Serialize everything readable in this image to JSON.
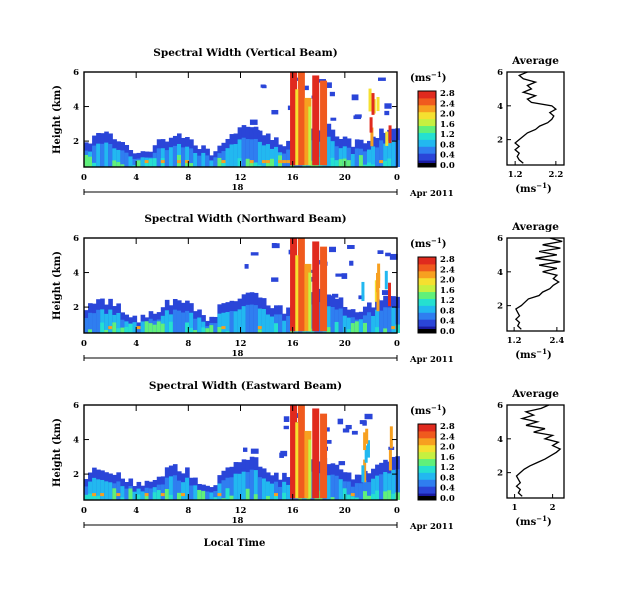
{
  "chart_data": [
    {
      "type": "heatmap",
      "title": "Spectral Width (Vertical Beam)",
      "ylabel": "Height (km)",
      "y_ticks": [
        "2",
        "4",
        "6"
      ],
      "x_ticks": [
        "0",
        "4",
        "8",
        "12",
        "16",
        "20",
        "0"
      ],
      "date_day": "18",
      "date_month": "Apr 2011",
      "xlim": [
        0,
        24
      ],
      "ylim": [
        0.5,
        6
      ],
      "colorbar": {
        "unit": "(ms",
        "unit_exp": "−1",
        "unit_close": ")",
        "tick_labels": [
          "2.8",
          "2.4",
          "2.0",
          "1.6",
          "1.2",
          "0.8",
          "0.4",
          "0.0"
        ]
      },
      "profile": {
        "title": "Average",
        "xlabel": "(ms",
        "xlabel_exp": "−1",
        "xlabel_close": ")",
        "x_ticks": [
          "1.2",
          "2.2"
        ],
        "y_ticks": [
          "2",
          "4",
          "6"
        ],
        "xlim": [
          1.0,
          2.4
        ],
        "ylim": [
          0.5,
          6
        ],
        "points": [
          [
            1.4,
            0.6
          ],
          [
            1.3,
            0.8
          ],
          [
            1.25,
            1.0
          ],
          [
            1.3,
            1.2
          ],
          [
            1.2,
            1.4
          ],
          [
            1.3,
            1.6
          ],
          [
            1.2,
            1.8
          ],
          [
            1.3,
            2.0
          ],
          [
            1.4,
            2.2
          ],
          [
            1.5,
            2.4
          ],
          [
            1.7,
            2.6
          ],
          [
            1.8,
            2.8
          ],
          [
            2.0,
            3.0
          ],
          [
            2.1,
            3.2
          ],
          [
            2.15,
            3.4
          ],
          [
            2.05,
            3.6
          ],
          [
            2.2,
            3.8
          ],
          [
            2.1,
            4.0
          ],
          [
            1.6,
            4.2
          ],
          [
            1.5,
            4.4
          ],
          [
            1.7,
            4.6
          ],
          [
            1.4,
            4.8
          ],
          [
            1.6,
            5.0
          ],
          [
            1.5,
            5.2
          ],
          [
            1.7,
            5.4
          ],
          [
            1.4,
            5.6
          ],
          [
            1.3,
            5.8
          ],
          [
            1.5,
            6.0
          ]
        ]
      }
    },
    {
      "type": "heatmap",
      "title": "Spectral Width (Northward Beam)",
      "ylabel": "Height (km)",
      "y_ticks": [
        "2",
        "4",
        "6"
      ],
      "x_ticks": [
        "0",
        "4",
        "8",
        "12",
        "16",
        "20",
        "0"
      ],
      "date_day": "18",
      "date_month": "Apr 2011",
      "xlim": [
        0,
        24
      ],
      "ylim": [
        0.5,
        6
      ],
      "colorbar": {
        "unit": "(ms",
        "unit_exp": "−1",
        "unit_close": ")",
        "tick_labels": [
          "2.8",
          "2.4",
          "2.0",
          "1.6",
          "1.2",
          "0.8",
          "0.4",
          "0.0"
        ]
      },
      "profile": {
        "title": "Average",
        "xlabel": "(ms",
        "xlabel_exp": "−1",
        "xlabel_close": ")",
        "x_ticks": [
          "1.2",
          "2.4"
        ],
        "y_ticks": [
          "2",
          "4",
          "6"
        ],
        "xlim": [
          1.0,
          2.6
        ],
        "ylim": [
          0.5,
          6
        ],
        "points": [
          [
            1.4,
            0.6
          ],
          [
            1.3,
            0.8
          ],
          [
            1.35,
            1.0
          ],
          [
            1.25,
            1.2
          ],
          [
            1.35,
            1.4
          ],
          [
            1.3,
            1.6
          ],
          [
            1.25,
            1.8
          ],
          [
            1.4,
            2.0
          ],
          [
            1.5,
            2.2
          ],
          [
            1.6,
            2.4
          ],
          [
            1.9,
            2.6
          ],
          [
            2.0,
            2.8
          ],
          [
            2.2,
            3.0
          ],
          [
            2.3,
            3.2
          ],
          [
            2.45,
            3.4
          ],
          [
            2.3,
            3.6
          ],
          [
            2.4,
            3.8
          ],
          [
            2.0,
            4.0
          ],
          [
            2.4,
            4.2
          ],
          [
            1.9,
            4.4
          ],
          [
            2.5,
            4.6
          ],
          [
            1.8,
            4.8
          ],
          [
            2.4,
            5.0
          ],
          [
            1.9,
            5.2
          ],
          [
            2.5,
            5.4
          ],
          [
            2.0,
            5.6
          ],
          [
            2.55,
            5.8
          ],
          [
            2.2,
            6.0
          ]
        ]
      }
    },
    {
      "type": "heatmap",
      "title": "Spectral Width (Eastward Beam)",
      "ylabel": "Height (km)",
      "y_ticks": [
        "2",
        "4",
        "6"
      ],
      "x_ticks": [
        "0",
        "4",
        "8",
        "12",
        "16",
        "20",
        "0"
      ],
      "xlabel": "Local Time",
      "date_day": "18",
      "date_month": "Apr 2011",
      "xlim": [
        0,
        24
      ],
      "ylim": [
        0.5,
        6
      ],
      "colorbar": {
        "unit": "(ms",
        "unit_exp": "−1",
        "unit_close": ")",
        "tick_labels": [
          "2.8",
          "2.4",
          "2.0",
          "1.6",
          "1.2",
          "0.8",
          "0.4",
          "0.0"
        ]
      },
      "profile": {
        "title": "Average",
        "xlabel": "(ms",
        "xlabel_exp": "−1",
        "xlabel_close": ")",
        "x_ticks": [
          "1",
          "2"
        ],
        "y_ticks": [
          "2",
          "4",
          "6"
        ],
        "xlim": [
          0.8,
          2.3
        ],
        "ylim": [
          0.5,
          6
        ],
        "points": [
          [
            1.2,
            0.6
          ],
          [
            1.1,
            0.8
          ],
          [
            1.15,
            1.0
          ],
          [
            1.05,
            1.2
          ],
          [
            1.15,
            1.4
          ],
          [
            1.1,
            1.6
          ],
          [
            1.05,
            1.8
          ],
          [
            1.15,
            2.0
          ],
          [
            1.25,
            2.2
          ],
          [
            1.4,
            2.4
          ],
          [
            1.6,
            2.6
          ],
          [
            1.8,
            2.8
          ],
          [
            1.95,
            3.0
          ],
          [
            2.1,
            3.2
          ],
          [
            2.2,
            3.4
          ],
          [
            2.0,
            3.6
          ],
          [
            2.15,
            3.8
          ],
          [
            1.8,
            4.0
          ],
          [
            2.0,
            4.2
          ],
          [
            1.5,
            4.4
          ],
          [
            1.8,
            4.6
          ],
          [
            1.3,
            4.8
          ],
          [
            1.6,
            5.0
          ],
          [
            1.2,
            5.2
          ],
          [
            1.5,
            5.4
          ],
          [
            1.3,
            5.6
          ],
          [
            1.7,
            5.8
          ],
          [
            1.9,
            6.0
          ]
        ]
      }
    }
  ]
}
